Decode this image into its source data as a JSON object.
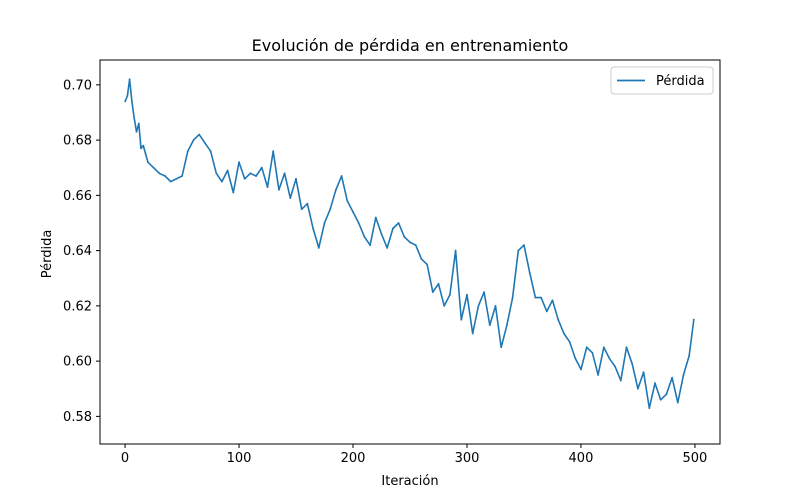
{
  "chart_data": {
    "type": "line",
    "title": "Evolución de pérdida en entrenamiento",
    "xlabel": "Iteración",
    "ylabel": "Pérdida",
    "xlim": [
      -22,
      522
    ],
    "ylim": [
      0.57,
      0.709
    ],
    "xticks": [
      0,
      100,
      200,
      300,
      400,
      500
    ],
    "yticks": [
      0.58,
      0.6,
      0.62,
      0.64,
      0.66,
      0.68,
      0.7
    ],
    "ytick_labels": [
      "0.58",
      "0.60",
      "0.62",
      "0.64",
      "0.66",
      "0.68",
      "0.70"
    ],
    "grid": false,
    "legend_position": "top-right",
    "series": [
      {
        "name": "Pérdida",
        "color": "#1f77b4",
        "x": [
          0,
          2,
          4,
          6,
          8,
          10,
          12,
          14,
          16,
          18,
          20,
          25,
          30,
          35,
          40,
          45,
          50,
          55,
          60,
          65,
          70,
          75,
          80,
          85,
          90,
          95,
          100,
          105,
          110,
          115,
          120,
          125,
          130,
          135,
          140,
          145,
          150,
          155,
          160,
          165,
          170,
          175,
          180,
          185,
          190,
          195,
          200,
          205,
          210,
          215,
          220,
          225,
          230,
          235,
          240,
          245,
          250,
          255,
          260,
          265,
          270,
          275,
          280,
          285,
          290,
          295,
          300,
          305,
          310,
          315,
          320,
          325,
          330,
          335,
          340,
          345,
          350,
          355,
          360,
          365,
          370,
          375,
          380,
          385,
          390,
          395,
          400,
          405,
          410,
          415,
          420,
          425,
          430,
          435,
          440,
          445,
          450,
          455,
          460,
          465,
          470,
          475,
          480,
          485,
          490,
          495,
          499
        ],
        "y": [
          0.694,
          0.696,
          0.702,
          0.694,
          0.688,
          0.683,
          0.686,
          0.677,
          0.678,
          0.675,
          0.672,
          0.67,
          0.668,
          0.667,
          0.665,
          0.666,
          0.667,
          0.676,
          0.68,
          0.682,
          0.679,
          0.676,
          0.668,
          0.665,
          0.669,
          0.661,
          0.672,
          0.666,
          0.668,
          0.667,
          0.67,
          0.663,
          0.676,
          0.662,
          0.668,
          0.659,
          0.666,
          0.655,
          0.657,
          0.648,
          0.641,
          0.65,
          0.655,
          0.662,
          0.667,
          0.658,
          0.654,
          0.65,
          0.645,
          0.642,
          0.652,
          0.646,
          0.641,
          0.648,
          0.65,
          0.645,
          0.643,
          0.642,
          0.637,
          0.635,
          0.625,
          0.628,
          0.62,
          0.624,
          0.64,
          0.615,
          0.624,
          0.61,
          0.62,
          0.625,
          0.613,
          0.62,
          0.605,
          0.613,
          0.623,
          0.64,
          0.642,
          0.632,
          0.623,
          0.623,
          0.618,
          0.622,
          0.615,
          0.61,
          0.607,
          0.601,
          0.597,
          0.605,
          0.603,
          0.595,
          0.605,
          0.601,
          0.598,
          0.593,
          0.605,
          0.599,
          0.59,
          0.596,
          0.583,
          0.592,
          0.586,
          0.588,
          0.594,
          0.585,
          0.595,
          0.602,
          0.615
        ]
      }
    ]
  }
}
